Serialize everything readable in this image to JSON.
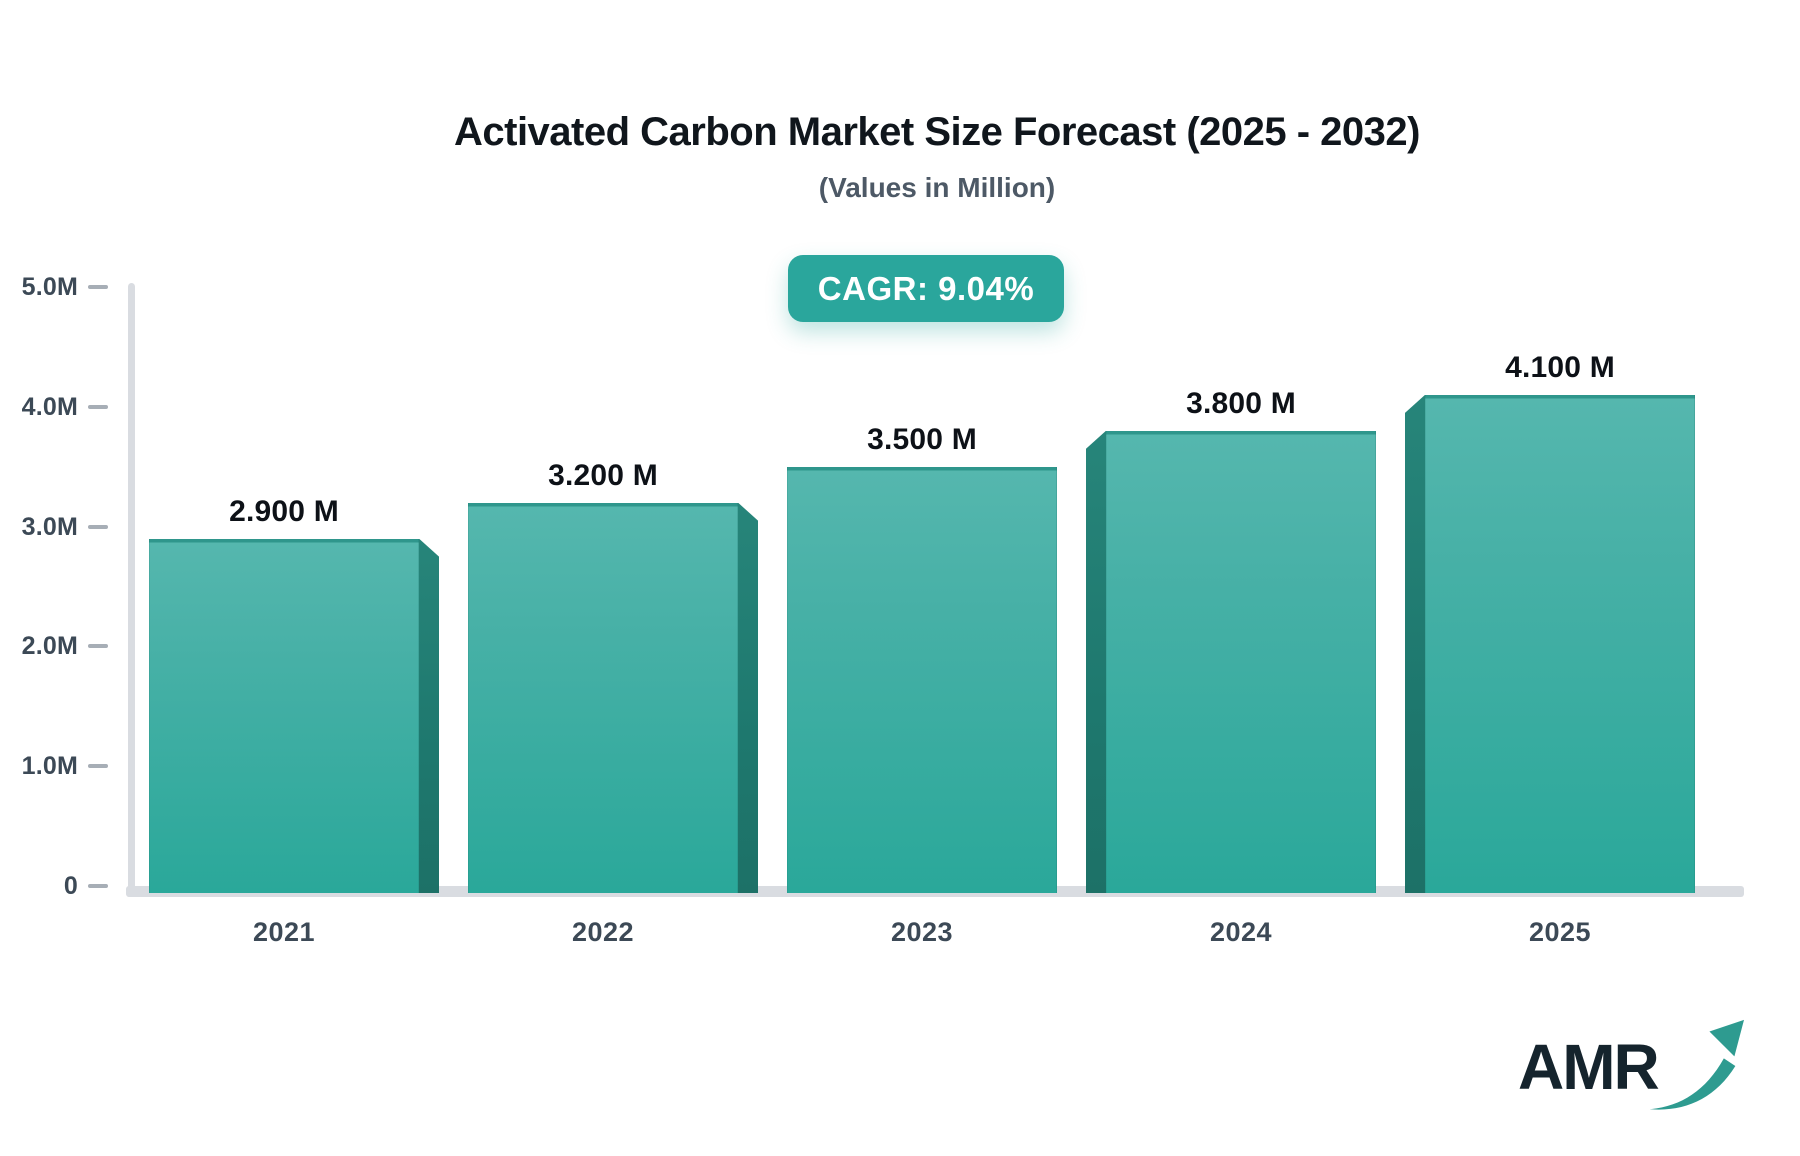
{
  "header": {
    "title": "Activated Carbon Market Size Forecast (2025 - 2032)",
    "subtitle": "(Values in Million)"
  },
  "badge": {
    "label": "CAGR: 9.04%"
  },
  "logo": {
    "text": "AMR",
    "arrow_icon": "trend-up-arrow",
    "arrow_color": "#2e9b90"
  },
  "chart_data": {
    "type": "bar",
    "title": "Activated Carbon Market Size Forecast (2025 - 2032)",
    "subtitle": "(Values in Million)",
    "annotation": "CAGR: 9.04%",
    "categories": [
      "2021",
      "2022",
      "2023",
      "2024",
      "2025"
    ],
    "values": [
      2.9,
      3.2,
      3.5,
      3.8,
      4.1
    ],
    "bar_labels": [
      "2.900 M",
      "3.200 M",
      "3.500 M",
      "3.800 M",
      "4.100 M"
    ],
    "unit": "Million",
    "xlabel": "",
    "ylabel": "",
    "ylim": [
      0,
      5
    ],
    "grid": false,
    "legend": false,
    "y_ticks": [
      {
        "value": 0,
        "label": "0"
      },
      {
        "value": 1,
        "label": "1.0M"
      },
      {
        "value": 2,
        "label": "2.0M"
      },
      {
        "value": 3,
        "label": "3.0M"
      },
      {
        "value": 4,
        "label": "4.0M"
      },
      {
        "value": 5,
        "label": "5.0M"
      }
    ],
    "colors": {
      "bar_gradient_top": "#55b7ae",
      "bar_gradient_bottom": "#2aa89a",
      "bar_bevel": "#1e786e",
      "bar_top_edge": "#2f968c",
      "axis": "#d9dce1",
      "tick_dash": "#a7aeb6",
      "axis_label": "#3c4956",
      "value_label": "#0d1117",
      "badge_bg": "#2aa69c",
      "badge_text": "#ffffff",
      "background": "#ffffff"
    }
  }
}
